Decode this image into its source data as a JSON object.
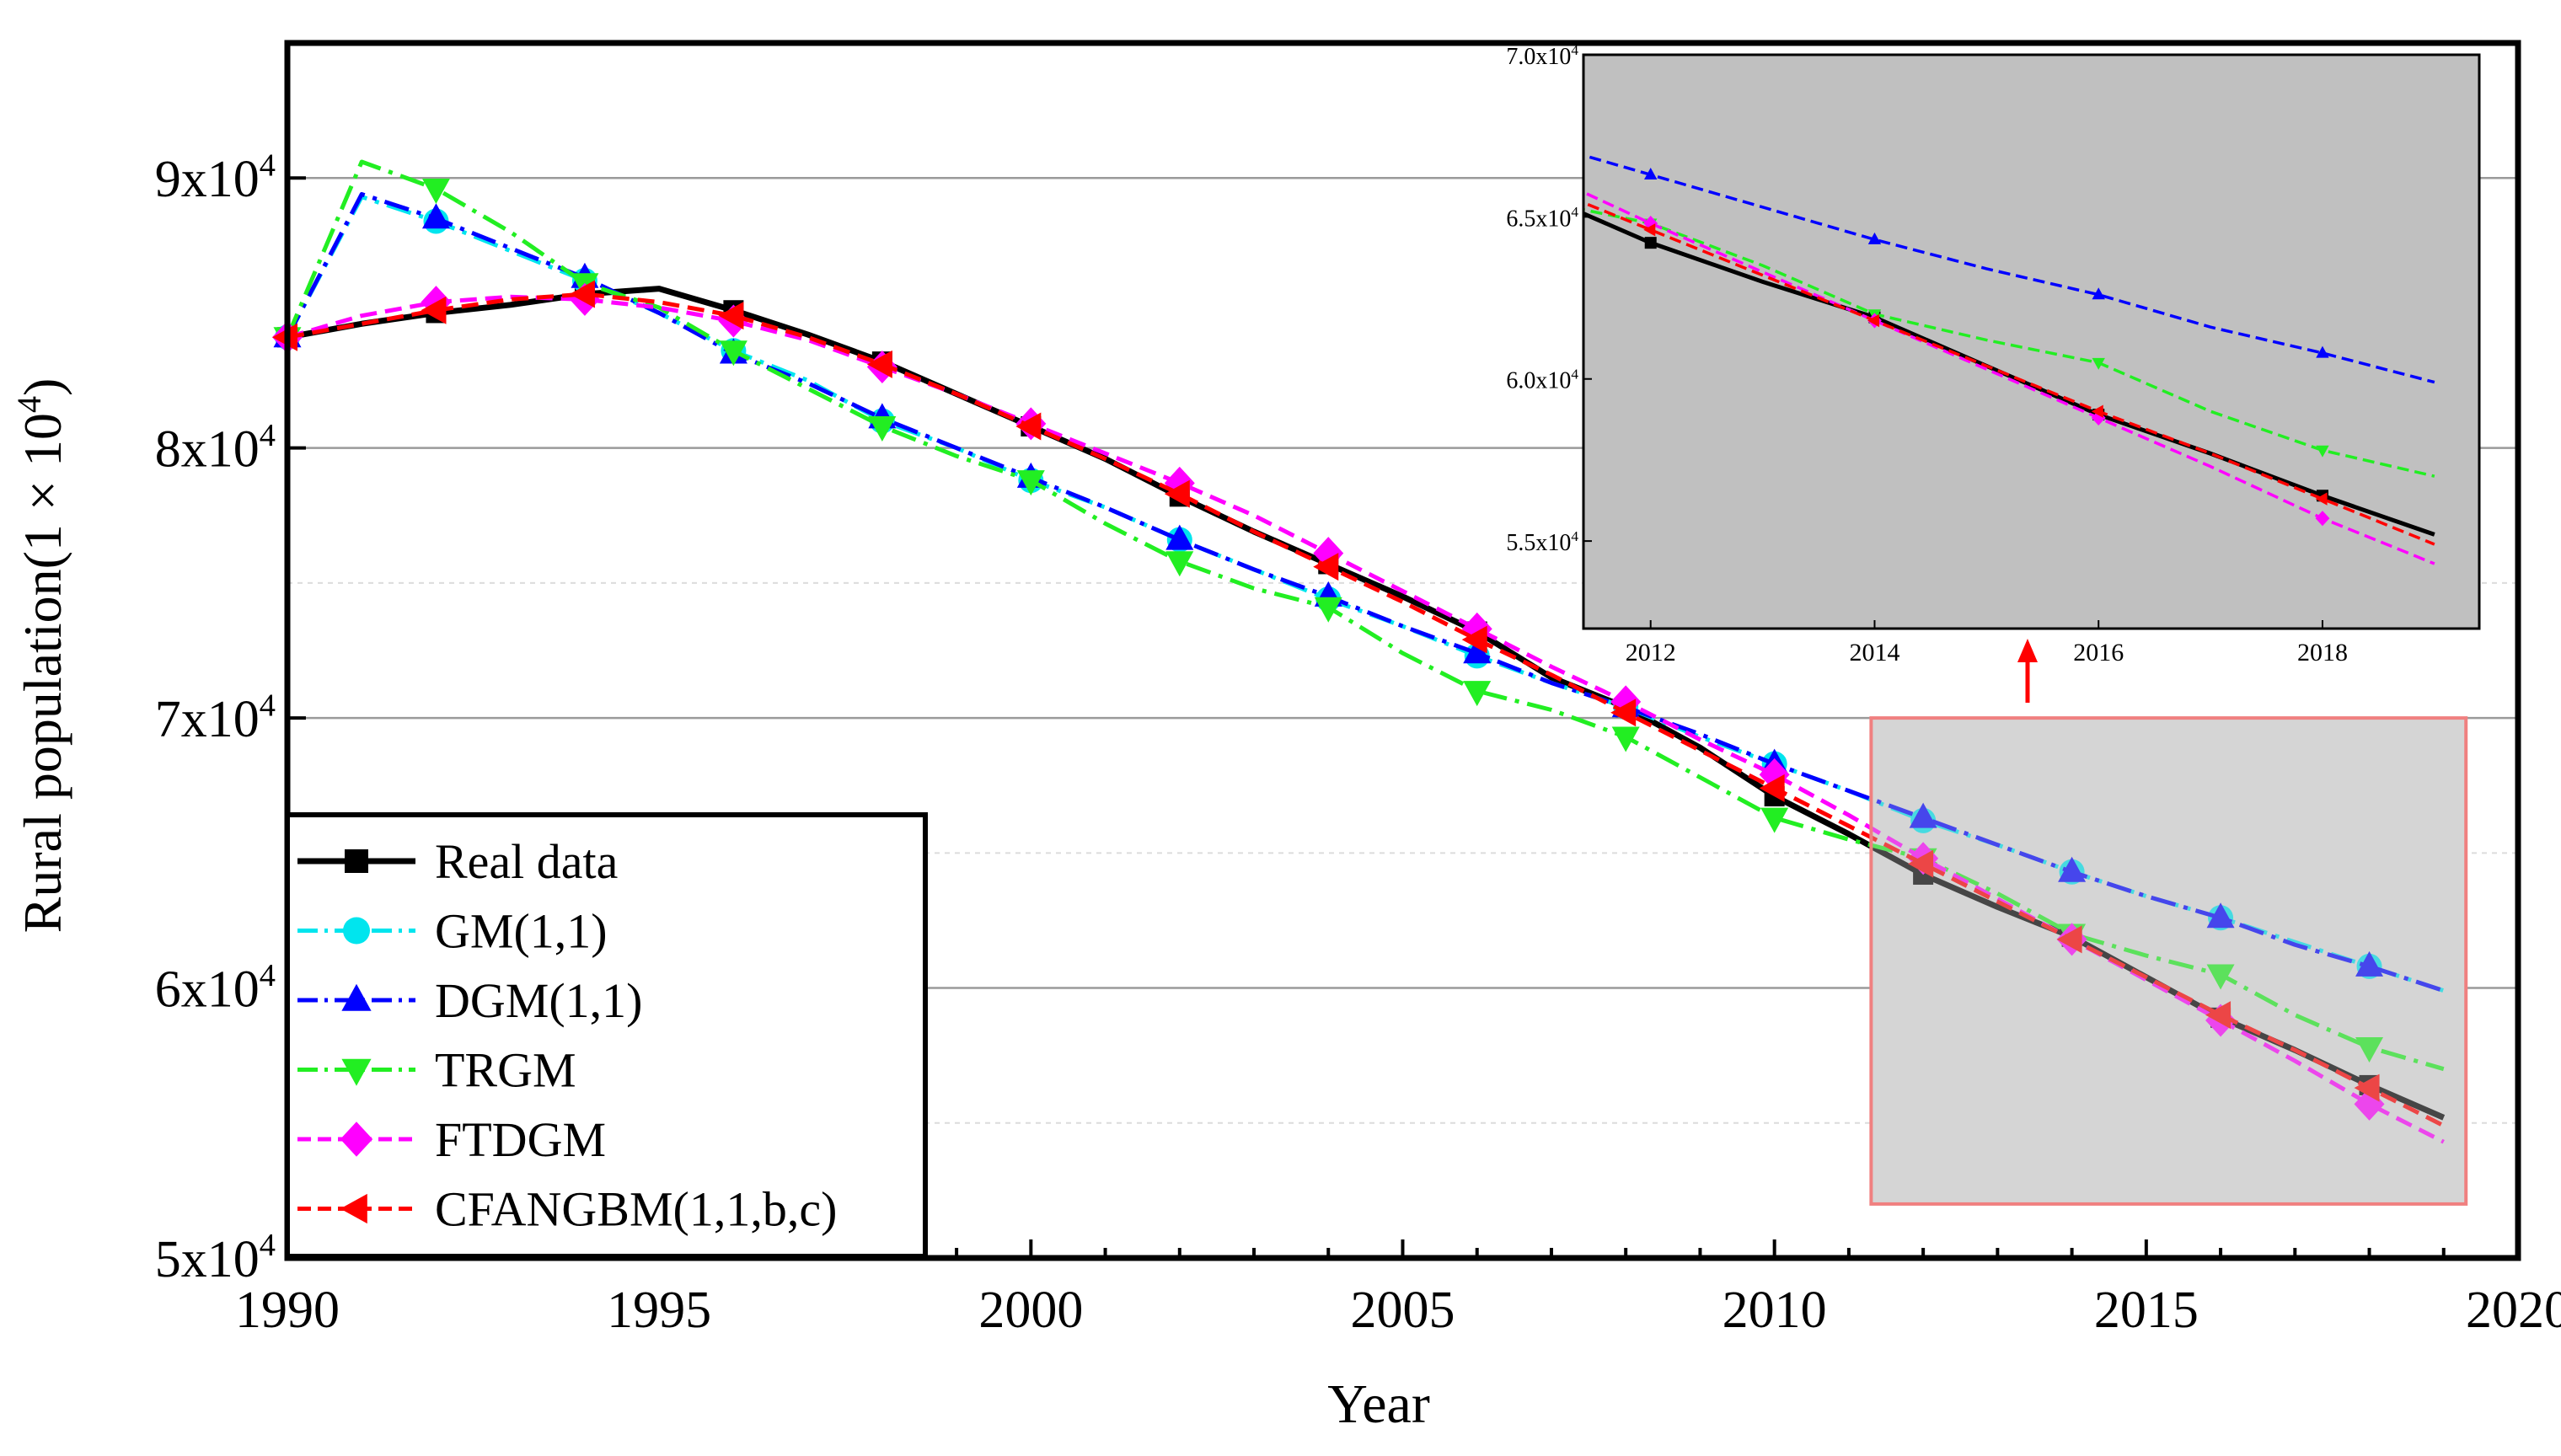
{
  "chart_data": [
    {
      "type": "line",
      "title": "",
      "xlabel": "Year",
      "ylabel": "Rural population(1 × 10",
      "ylabel_exp": "4",
      "ylabel_close": ")",
      "xlim": [
        1990,
        2020
      ],
      "ylim": [
        50000,
        95000
      ],
      "x_ticks": [
        1990,
        1995,
        2000,
        2005,
        2010,
        2015,
        2020
      ],
      "y_ticks": [
        {
          "value": 50000,
          "base": "5x10",
          "exp": "4"
        },
        {
          "value": 60000,
          "base": "6x10",
          "exp": "4"
        },
        {
          "value": 70000,
          "base": "7x10",
          "exp": "4"
        },
        {
          "value": 80000,
          "base": "8x10",
          "exp": "4"
        },
        {
          "value": 90000,
          "base": "9x10",
          "exp": "4"
        }
      ],
      "grid_major_y": [
        60000,
        70000,
        80000,
        90000
      ],
      "grid_minor_y": [
        55000,
        65000,
        75000
      ],
      "legend_position": "bottom-left",
      "series": [
        {
          "name": "Real data",
          "color": "#000000",
          "dash": "solid",
          "marker": "square",
          "line_x": [
            1990,
            1991,
            1992,
            1993,
            1994,
            1995,
            1996,
            1997,
            1998,
            1999,
            2000,
            2001,
            2002,
            2003,
            2004,
            2005,
            2006,
            2007,
            2008,
            2009,
            2010,
            2011,
            2012,
            2013,
            2014,
            2015,
            2016,
            2017,
            2018,
            2019
          ],
          "line_y": [
            84100,
            84600,
            85000,
            85300,
            85700,
            85900,
            85100,
            84200,
            83200,
            82000,
            80800,
            79600,
            78200,
            76900,
            75700,
            74500,
            73200,
            71500,
            70400,
            68900,
            67100,
            65700,
            64200,
            63000,
            61900,
            60400,
            58900,
            57700,
            56400,
            55200
          ],
          "marker_x": [
            1990,
            1992,
            1994,
            1996,
            1998,
            2000,
            2002,
            2004,
            2006,
            2008,
            2010,
            2012,
            2014,
            2016,
            2018
          ],
          "marker_y": [
            84100,
            85000,
            85700,
            85100,
            83200,
            80800,
            78200,
            75700,
            73200,
            70400,
            67100,
            64200,
            61900,
            58900,
            56400
          ]
        },
        {
          "name": "GM(1,1)",
          "color": "#00e5ee",
          "dash": "dashdot",
          "marker": "circle",
          "line_x": [
            1990,
            1991,
            1992,
            1993,
            1994,
            1995,
            1996,
            1997,
            1998,
            1999,
            2000,
            2001,
            2002,
            2003,
            2004,
            2005,
            2006,
            2007,
            2008,
            2009,
            2010,
            2011,
            2012,
            2013,
            2014,
            2015,
            2016,
            2017,
            2018,
            2019
          ],
          "line_y": [
            84100,
            89300,
            88400,
            87300,
            86200,
            85000,
            83600,
            82500,
            81000,
            80000,
            78800,
            77800,
            76600,
            75500,
            74400,
            73400,
            72300,
            71300,
            70400,
            69300,
            68300,
            67300,
            66200,
            65300,
            64300,
            63400,
            62600,
            61700,
            60800,
            59900
          ],
          "marker_x": [
            1990,
            1992,
            1994,
            1996,
            1998,
            2000,
            2002,
            2004,
            2006,
            2008,
            2010,
            2012,
            2014,
            2016,
            2018
          ],
          "marker_y": [
            84100,
            88400,
            86200,
            83600,
            81000,
            78800,
            76600,
            74400,
            72300,
            70400,
            68300,
            66200,
            64300,
            62600,
            60800
          ]
        },
        {
          "name": "DGM(1,1)",
          "color": "#0000ff",
          "dash": "dashdot",
          "marker": "triangle-up",
          "line_x": [
            1990,
            1991,
            1992,
            1993,
            1994,
            1995,
            1996,
            1997,
            1998,
            1999,
            2000,
            2001,
            2002,
            2003,
            2004,
            2005,
            2006,
            2007,
            2008,
            2009,
            2010,
            2011,
            2012,
            2013,
            2014,
            2015,
            2016,
            2017,
            2018,
            2019
          ],
          "line_y": [
            84100,
            89400,
            88500,
            87400,
            86300,
            85000,
            83500,
            82400,
            81100,
            80000,
            78900,
            77800,
            76600,
            75500,
            74500,
            73400,
            72400,
            71300,
            70400,
            69400,
            68300,
            67300,
            66300,
            65300,
            64300,
            63400,
            62600,
            61600,
            60800,
            59900
          ],
          "marker_x": [
            1990,
            1992,
            1994,
            1996,
            1998,
            2000,
            2002,
            2004,
            2006,
            2008,
            2010,
            2012,
            2014,
            2016,
            2018
          ],
          "marker_y": [
            84100,
            88500,
            86300,
            83500,
            81100,
            78900,
            76600,
            74500,
            72400,
            70400,
            68300,
            66300,
            64300,
            62600,
            60800
          ]
        },
        {
          "name": "TRGM",
          "color": "#22ee22",
          "dash": "dashdot",
          "marker": "triangle-down",
          "line_x": [
            1990,
            1991,
            1992,
            1993,
            1994,
            1995,
            1996,
            1997,
            1998,
            1999,
            2000,
            2001,
            2002,
            2003,
            2004,
            2005,
            2006,
            2007,
            2008,
            2009,
            2010,
            2011,
            2012,
            2013,
            2014,
            2015,
            2016,
            2017,
            2018,
            2019
          ],
          "line_y": [
            84100,
            90600,
            89600,
            88000,
            86100,
            85200,
            83600,
            82200,
            80800,
            79700,
            78800,
            77200,
            75800,
            74800,
            74100,
            72400,
            71000,
            70300,
            69300,
            67800,
            66300,
            65500,
            64800,
            63500,
            62000,
            61200,
            60500,
            59000,
            57800,
            57000
          ],
          "marker_x": [
            1990,
            1992,
            1994,
            1996,
            1998,
            2000,
            2002,
            2004,
            2006,
            2008,
            2010,
            2012,
            2014,
            2016,
            2018
          ],
          "marker_y": [
            84100,
            89600,
            86100,
            83600,
            80800,
            78800,
            75800,
            74100,
            71000,
            69300,
            66300,
            64800,
            62000,
            60500,
            57800
          ]
        },
        {
          "name": "FTDGM",
          "color": "#ff00ff",
          "dash": "dashed",
          "marker": "diamond",
          "line_x": [
            1990,
            1991,
            1992,
            1993,
            1994,
            1995,
            1996,
            1997,
            1998,
            1999,
            2000,
            2001,
            2002,
            2003,
            2004,
            2005,
            2006,
            2007,
            2008,
            2009,
            2010,
            2011,
            2012,
            2013,
            2014,
            2015,
            2016,
            2017,
            2018,
            2019
          ],
          "line_y": [
            84100,
            84900,
            85400,
            85600,
            85500,
            85200,
            84700,
            84000,
            83000,
            82000,
            80900,
            79800,
            78700,
            77500,
            76100,
            74700,
            73300,
            71900,
            70600,
            69200,
            67900,
            66400,
            64800,
            63300,
            61800,
            60300,
            58800,
            57300,
            55700,
            54300
          ],
          "marker_x": [
            1990,
            1992,
            1994,
            1996,
            1998,
            2000,
            2002,
            2004,
            2006,
            2008,
            2010,
            2012,
            2014,
            2016,
            2018
          ],
          "marker_y": [
            84100,
            85400,
            85500,
            84700,
            83000,
            80900,
            78700,
            76100,
            73300,
            70600,
            67900,
            64800,
            61800,
            58800,
            55700
          ]
        },
        {
          "name": "CFANGBM(1,1,b,c)",
          "color": "#ff0000",
          "dash": "dashed",
          "marker": "triangle-left",
          "line_x": [
            1990,
            1991,
            1992,
            1993,
            1994,
            1995,
            1996,
            1997,
            1998,
            1999,
            2000,
            2001,
            2002,
            2003,
            2004,
            2005,
            2006,
            2007,
            2008,
            2009,
            2010,
            2011,
            2012,
            2013,
            2014,
            2015,
            2016,
            2017,
            2018,
            2019
          ],
          "line_y": [
            84100,
            84600,
            85100,
            85500,
            85700,
            85400,
            84900,
            84100,
            83100,
            82000,
            80800,
            79600,
            78300,
            76900,
            75600,
            74300,
            72900,
            71600,
            70200,
            68800,
            67400,
            66000,
            64600,
            63200,
            61800,
            60400,
            59000,
            57700,
            56300,
            54900
          ],
          "marker_x": [
            1990,
            1992,
            1994,
            1996,
            1998,
            2000,
            2002,
            2004,
            2006,
            2008,
            2010,
            2012,
            2014,
            2016,
            2018
          ],
          "marker_y": [
            84100,
            85100,
            85700,
            84900,
            83100,
            80800,
            78300,
            75600,
            72900,
            70200,
            67400,
            64600,
            61800,
            59000,
            56300
          ]
        }
      ]
    },
    {
      "type": "line",
      "title": "",
      "xlabel": "",
      "ylabel": "",
      "xlim": [
        2011.4,
        2019.4
      ],
      "ylim": [
        52300,
        70000
      ],
      "x_ticks": [
        2012,
        2014,
        2016,
        2018
      ],
      "y_ticks": [
        {
          "value": 55000,
          "base": "5.5x10",
          "exp": "4"
        },
        {
          "value": 60000,
          "base": "6.0x10",
          "exp": "4"
        },
        {
          "value": 65000,
          "base": "6.5x10",
          "exp": "4"
        },
        {
          "value": 70000,
          "base": "7.0x10",
          "exp": "4"
        }
      ],
      "background": "#c0c0c0",
      "zoom_region": {
        "x_range": [
          2011.3,
          2019.3
        ],
        "y_range": [
          52000,
          70000
        ]
      }
    }
  ]
}
